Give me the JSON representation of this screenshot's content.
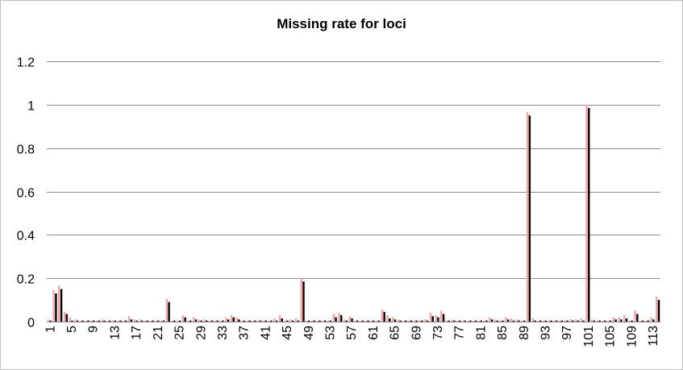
{
  "chart_data": {
    "type": "bar",
    "title": "Missing rate for loci",
    "xlabel": "",
    "ylabel": "",
    "ylim": [
      0,
      1.2
    ],
    "yticks": [
      "0",
      "0.2",
      "0.4",
      "0.6",
      "0.8",
      "1",
      "1.2"
    ],
    "grid": true,
    "legend": "none",
    "categories": [
      1,
      2,
      3,
      4,
      5,
      6,
      7,
      8,
      9,
      10,
      11,
      12,
      13,
      14,
      15,
      16,
      17,
      18,
      19,
      20,
      21,
      22,
      23,
      24,
      25,
      26,
      27,
      28,
      29,
      30,
      31,
      32,
      33,
      34,
      35,
      36,
      37,
      38,
      39,
      40,
      41,
      42,
      43,
      44,
      45,
      46,
      47,
      48,
      49,
      50,
      51,
      52,
      53,
      54,
      55,
      56,
      57,
      58,
      59,
      60,
      61,
      62,
      63,
      64,
      65,
      66,
      67,
      68,
      69,
      70,
      71,
      72,
      73,
      74,
      75,
      76,
      77,
      78,
      79,
      80,
      81,
      82,
      83,
      84,
      85,
      86,
      87,
      88,
      89,
      90,
      91,
      92,
      93,
      94,
      95,
      96,
      97,
      98,
      99,
      100,
      101,
      102,
      103,
      104,
      105,
      106,
      107,
      108,
      109,
      110,
      111,
      112,
      113,
      114
    ],
    "xtick_labels": [
      "1",
      "5",
      "9",
      "13",
      "17",
      "21",
      "25",
      "29",
      "33",
      "37",
      "41",
      "45",
      "49",
      "53",
      "57",
      "61",
      "65",
      "69",
      "73",
      "77",
      "81",
      "85",
      "89",
      "93",
      "97",
      "101",
      "105",
      "109",
      "113"
    ],
    "series": [
      {
        "color": "#f4a4a4",
        "values": [
          0.01,
          0.145,
          0.165,
          0.045,
          0.02,
          0.01,
          0.005,
          0.005,
          0.005,
          0.005,
          0.01,
          0.005,
          0.005,
          0.005,
          0.005,
          0.025,
          0.01,
          0.01,
          0.005,
          0.005,
          0.005,
          0.005,
          0.105,
          0.005,
          0.005,
          0.03,
          0.005,
          0.02,
          0.01,
          0.01,
          0.005,
          0.005,
          0.005,
          0.02,
          0.03,
          0.02,
          0.005,
          0.005,
          0.005,
          0.005,
          0.005,
          0.005,
          0.015,
          0.03,
          0.005,
          0.01,
          0.015,
          0.2,
          0.005,
          0.005,
          0.005,
          0.005,
          0.005,
          0.035,
          0.04,
          0.01,
          0.025,
          0.005,
          0.005,
          0.005,
          0.005,
          0.005,
          0.055,
          0.03,
          0.02,
          0.01,
          0.005,
          0.005,
          0.005,
          0.005,
          0.01,
          0.04,
          0.03,
          0.05,
          0.005,
          0.01,
          0.005,
          0.005,
          0.005,
          0.005,
          0.005,
          0.005,
          0.02,
          0.01,
          0.005,
          0.02,
          0.015,
          0.01,
          0.005,
          0.965,
          0.015,
          0.005,
          0.005,
          0.005,
          0.005,
          0.005,
          0.005,
          0.01,
          0.01,
          0.015,
          1.0,
          0.01,
          0.005,
          0.005,
          0.005,
          0.02,
          0.02,
          0.03,
          0.005,
          0.05,
          0.005,
          0.005,
          0.02,
          0.115
        ]
      },
      {
        "color": "#000000",
        "values": [
          0.005,
          0.13,
          0.15,
          0.035,
          0.005,
          0.005,
          0.005,
          0.005,
          0.005,
          0.005,
          0.005,
          0.005,
          0.005,
          0.005,
          0.005,
          0.01,
          0.005,
          0.005,
          0.005,
          0.005,
          0.005,
          0.005,
          0.09,
          0.005,
          0.005,
          0.02,
          0.005,
          0.01,
          0.005,
          0.005,
          0.005,
          0.005,
          0.005,
          0.01,
          0.02,
          0.01,
          0.005,
          0.005,
          0.005,
          0.005,
          0.005,
          0.005,
          0.005,
          0.015,
          0.005,
          0.005,
          0.005,
          0.185,
          0.005,
          0.005,
          0.005,
          0.005,
          0.005,
          0.02,
          0.03,
          0.005,
          0.015,
          0.005,
          0.005,
          0.005,
          0.005,
          0.005,
          0.045,
          0.015,
          0.01,
          0.005,
          0.005,
          0.005,
          0.005,
          0.005,
          0.005,
          0.025,
          0.02,
          0.035,
          0.005,
          0.005,
          0.005,
          0.005,
          0.005,
          0.005,
          0.005,
          0.005,
          0.01,
          0.005,
          0.005,
          0.01,
          0.005,
          0.005,
          0.005,
          0.95,
          0.005,
          0.005,
          0.005,
          0.005,
          0.005,
          0.005,
          0.005,
          0.005,
          0.005,
          0.005,
          0.985,
          0.005,
          0.005,
          0.005,
          0.005,
          0.01,
          0.01,
          0.015,
          0.005,
          0.035,
          0.005,
          0.005,
          0.01,
          0.1
        ]
      }
    ]
  }
}
